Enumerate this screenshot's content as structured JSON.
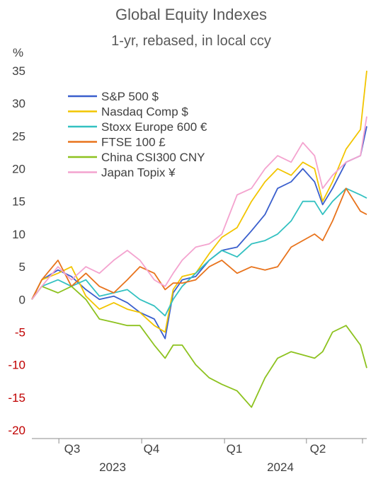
{
  "chart_data": {
    "type": "line",
    "title": "Global Equity Indexes",
    "subtitle": "1-yr, rebased, in local ccy",
    "ylabel": "%",
    "ylim": [
      -20,
      35
    ],
    "yticks": [
      35,
      30,
      25,
      20,
      15,
      10,
      5,
      0,
      -5,
      -10,
      -15,
      -20
    ],
    "negative_tick_color": "#c00000",
    "positive_tick_color": "#404040",
    "x_quarters": [
      "Q3",
      "Q4",
      "Q1",
      "Q2"
    ],
    "x_years": [
      "2023",
      "2024"
    ],
    "x_range": [
      "2023-06-01",
      "2024-06-07"
    ],
    "grid": false,
    "legend_position": "top-left",
    "series": [
      {
        "name": "S&P 500 $",
        "color": "#3a5fcd",
        "points": [
          [
            "2023-06-01",
            0
          ],
          [
            "2023-06-12",
            3
          ],
          [
            "2023-06-30",
            4.5
          ],
          [
            "2023-07-15",
            3.5
          ],
          [
            "2023-07-31",
            1.5
          ],
          [
            "2023-08-15",
            0
          ],
          [
            "2023-08-31",
            0.5
          ],
          [
            "2023-09-15",
            -0.5
          ],
          [
            "2023-09-29",
            -2
          ],
          [
            "2023-10-15",
            -3
          ],
          [
            "2023-10-27",
            -6
          ],
          [
            "2023-11-05",
            1
          ],
          [
            "2023-11-15",
            3
          ],
          [
            "2023-11-30",
            3.5
          ],
          [
            "2023-12-15",
            6
          ],
          [
            "2023-12-29",
            7.5
          ],
          [
            "2024-01-15",
            8
          ],
          [
            "2024-01-31",
            10.5
          ],
          [
            "2024-02-15",
            13
          ],
          [
            "2024-02-29",
            17
          ],
          [
            "2024-03-15",
            18
          ],
          [
            "2024-03-28",
            20
          ],
          [
            "2024-04-10",
            18
          ],
          [
            "2024-04-19",
            14.5
          ],
          [
            "2024-04-30",
            17
          ],
          [
            "2024-05-15",
            21
          ],
          [
            "2024-05-31",
            22
          ],
          [
            "2024-06-07",
            26.5
          ]
        ]
      },
      {
        "name": "Nasdaq Comp $",
        "color": "#f2c500",
        "points": [
          [
            "2023-06-01",
            0
          ],
          [
            "2023-06-12",
            3
          ],
          [
            "2023-06-30",
            4
          ],
          [
            "2023-07-15",
            5
          ],
          [
            "2023-07-31",
            0.5
          ],
          [
            "2023-08-15",
            -1.5
          ],
          [
            "2023-08-31",
            -0.5
          ],
          [
            "2023-09-15",
            -1.5
          ],
          [
            "2023-09-29",
            -2
          ],
          [
            "2023-10-15",
            -4
          ],
          [
            "2023-10-27",
            -5
          ],
          [
            "2023-11-05",
            1.5
          ],
          [
            "2023-11-15",
            3.5
          ],
          [
            "2023-11-30",
            4
          ],
          [
            "2023-12-15",
            7
          ],
          [
            "2023-12-29",
            9.5
          ],
          [
            "2024-01-15",
            11
          ],
          [
            "2024-01-31",
            15
          ],
          [
            "2024-02-15",
            18
          ],
          [
            "2024-02-29",
            20
          ],
          [
            "2024-03-15",
            19
          ],
          [
            "2024-03-28",
            21
          ],
          [
            "2024-04-10",
            20
          ],
          [
            "2024-04-19",
            15
          ],
          [
            "2024-04-30",
            18
          ],
          [
            "2024-05-15",
            23
          ],
          [
            "2024-05-31",
            26
          ],
          [
            "2024-06-07",
            35
          ]
        ]
      },
      {
        "name": "Stoxx Europe 600 €",
        "color": "#33c1c1",
        "points": [
          [
            "2023-06-01",
            0
          ],
          [
            "2023-06-12",
            2
          ],
          [
            "2023-06-30",
            3
          ],
          [
            "2023-07-15",
            2
          ],
          [
            "2023-07-31",
            3
          ],
          [
            "2023-08-15",
            0.5
          ],
          [
            "2023-08-31",
            1
          ],
          [
            "2023-09-15",
            1.5
          ],
          [
            "2023-09-29",
            0
          ],
          [
            "2023-10-15",
            -1
          ],
          [
            "2023-10-27",
            -2.5
          ],
          [
            "2023-11-05",
            0
          ],
          [
            "2023-11-15",
            2
          ],
          [
            "2023-11-30",
            4
          ],
          [
            "2023-12-15",
            6
          ],
          [
            "2023-12-29",
            7.5
          ],
          [
            "2024-01-15",
            6.5
          ],
          [
            "2024-01-31",
            8.5
          ],
          [
            "2024-02-15",
            9
          ],
          [
            "2024-02-29",
            10
          ],
          [
            "2024-03-15",
            12
          ],
          [
            "2024-03-28",
            15
          ],
          [
            "2024-04-10",
            15
          ],
          [
            "2024-04-19",
            13
          ],
          [
            "2024-04-30",
            15
          ],
          [
            "2024-05-15",
            17
          ],
          [
            "2024-05-31",
            16
          ],
          [
            "2024-06-07",
            15.5
          ]
        ]
      },
      {
        "name": "FTSE 100 £",
        "color": "#e8731c",
        "points": [
          [
            "2023-06-01",
            0
          ],
          [
            "2023-06-12",
            3
          ],
          [
            "2023-06-30",
            6
          ],
          [
            "2023-07-15",
            2
          ],
          [
            "2023-07-31",
            4
          ],
          [
            "2023-08-15",
            2
          ],
          [
            "2023-08-31",
            1
          ],
          [
            "2023-09-15",
            3
          ],
          [
            "2023-09-29",
            5
          ],
          [
            "2023-10-15",
            4
          ],
          [
            "2023-10-27",
            1.5
          ],
          [
            "2023-11-05",
            2.5
          ],
          [
            "2023-11-15",
            2.5
          ],
          [
            "2023-11-30",
            3
          ],
          [
            "2023-12-15",
            5
          ],
          [
            "2023-12-29",
            6
          ],
          [
            "2024-01-15",
            4
          ],
          [
            "2024-01-31",
            5
          ],
          [
            "2024-02-15",
            4.5
          ],
          [
            "2024-02-29",
            5
          ],
          [
            "2024-03-15",
            8
          ],
          [
            "2024-03-28",
            9
          ],
          [
            "2024-04-10",
            10
          ],
          [
            "2024-04-19",
            9
          ],
          [
            "2024-04-30",
            12
          ],
          [
            "2024-05-15",
            17
          ],
          [
            "2024-05-31",
            13.5
          ],
          [
            "2024-06-07",
            13
          ]
        ]
      },
      {
        "name": "China CSI300 CNY",
        "color": "#8dc21f",
        "points": [
          [
            "2023-06-01",
            0
          ],
          [
            "2023-06-12",
            2
          ],
          [
            "2023-06-30",
            1
          ],
          [
            "2023-07-15",
            2
          ],
          [
            "2023-07-31",
            0
          ],
          [
            "2023-08-15",
            -3
          ],
          [
            "2023-08-31",
            -3.5
          ],
          [
            "2023-09-15",
            -4
          ],
          [
            "2023-09-29",
            -4
          ],
          [
            "2023-10-15",
            -7
          ],
          [
            "2023-10-27",
            -9
          ],
          [
            "2023-11-05",
            -7
          ],
          [
            "2023-11-15",
            -7
          ],
          [
            "2023-11-30",
            -10
          ],
          [
            "2023-12-15",
            -12
          ],
          [
            "2023-12-29",
            -13
          ],
          [
            "2024-01-15",
            -14
          ],
          [
            "2024-01-31",
            -16.5
          ],
          [
            "2024-02-15",
            -12
          ],
          [
            "2024-02-29",
            -9
          ],
          [
            "2024-03-15",
            -8
          ],
          [
            "2024-03-28",
            -8.5
          ],
          [
            "2024-04-10",
            -9
          ],
          [
            "2024-04-19",
            -8
          ],
          [
            "2024-04-30",
            -5
          ],
          [
            "2024-05-15",
            -4
          ],
          [
            "2024-05-31",
            -7
          ],
          [
            "2024-06-07",
            -10.5
          ]
        ]
      },
      {
        "name": "Japan Topix ¥",
        "color": "#f4a3cf",
        "points": [
          [
            "2023-06-01",
            0
          ],
          [
            "2023-06-12",
            2
          ],
          [
            "2023-06-30",
            5
          ],
          [
            "2023-07-15",
            3
          ],
          [
            "2023-07-31",
            5
          ],
          [
            "2023-08-15",
            4
          ],
          [
            "2023-08-31",
            6
          ],
          [
            "2023-09-15",
            7.5
          ],
          [
            "2023-09-29",
            6
          ],
          [
            "2023-10-15",
            3
          ],
          [
            "2023-10-27",
            2
          ],
          [
            "2023-11-05",
            4
          ],
          [
            "2023-11-15",
            6
          ],
          [
            "2023-11-30",
            8
          ],
          [
            "2023-12-15",
            8.5
          ],
          [
            "2023-12-29",
            10
          ],
          [
            "2024-01-15",
            16
          ],
          [
            "2024-01-31",
            17
          ],
          [
            "2024-02-15",
            20
          ],
          [
            "2024-02-29",
            22
          ],
          [
            "2024-03-15",
            21
          ],
          [
            "2024-03-28",
            24
          ],
          [
            "2024-04-10",
            22
          ],
          [
            "2024-04-19",
            17
          ],
          [
            "2024-04-30",
            19
          ],
          [
            "2024-05-15",
            21
          ],
          [
            "2024-05-31",
            22
          ],
          [
            "2024-06-07",
            28
          ]
        ]
      }
    ]
  }
}
